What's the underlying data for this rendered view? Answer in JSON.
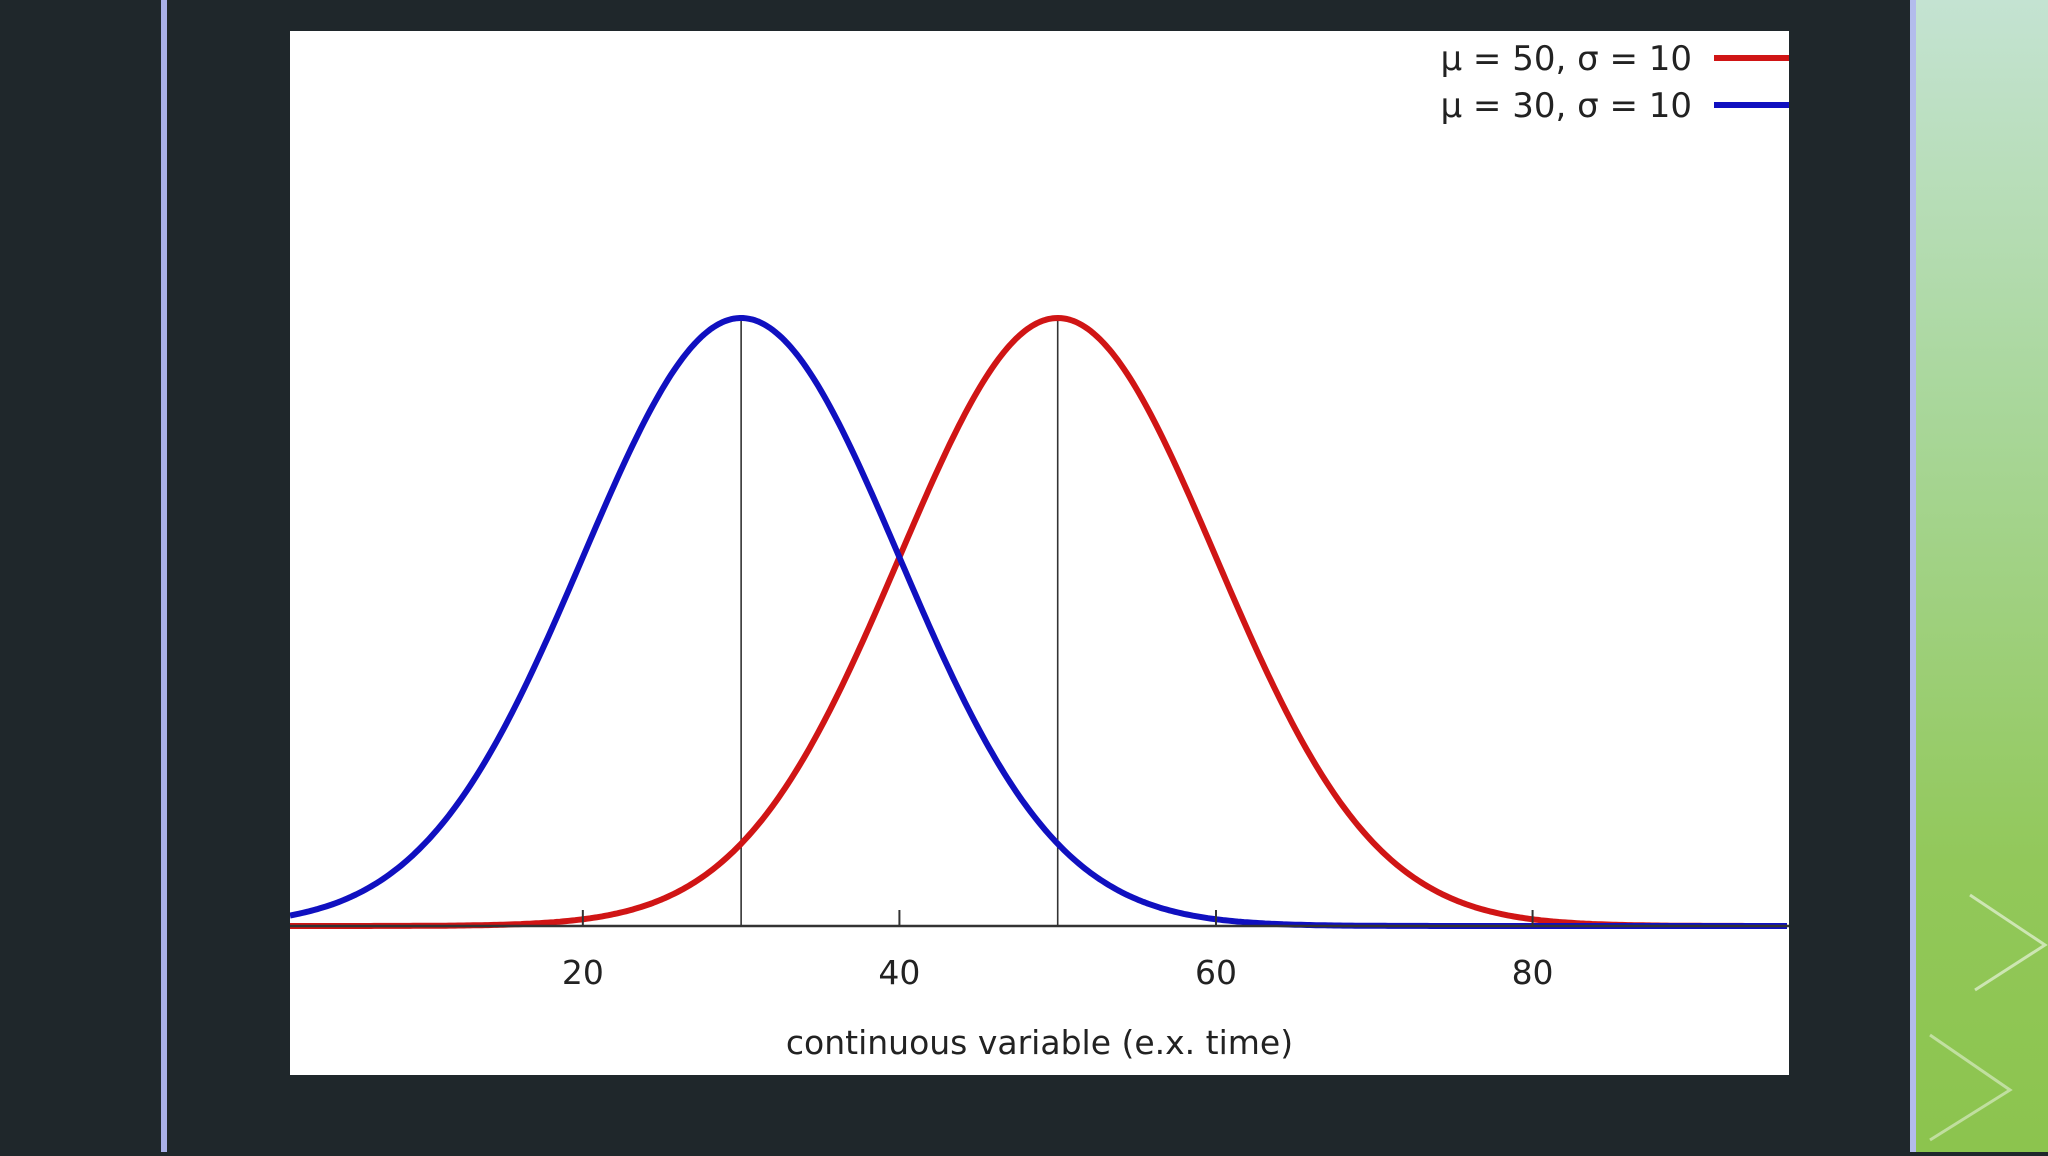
{
  "colors": {
    "background": "#1f272b",
    "accent_line": "#a9b0e8",
    "red_series": "#d01515",
    "blue_series": "#1010c0"
  },
  "chart_data": {
    "type": "line",
    "title": "",
    "xlabel": "continuous variable (e.x. time)",
    "ylabel": "",
    "xlim": [
      1.5,
      96.2
    ],
    "x_ticks": [
      20,
      40,
      60,
      80
    ],
    "x_tick_labels": [
      "20",
      "40",
      "60",
      "80"
    ],
    "grid": false,
    "legend_position": "top-right",
    "series": [
      {
        "name": "μ = 50, σ = 10",
        "mean": 50,
        "sd": 10,
        "color": "#d01515"
      },
      {
        "name": "μ = 30, σ = 10",
        "mean": 30,
        "sd": 10,
        "color": "#1010c0"
      }
    ],
    "reference_lines_x": [
      30,
      50
    ]
  }
}
